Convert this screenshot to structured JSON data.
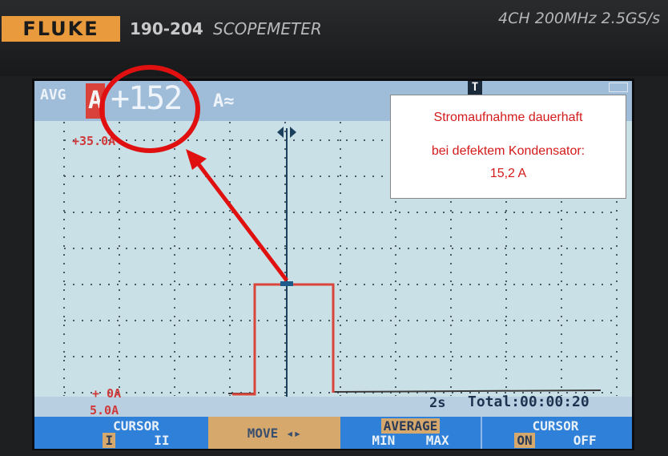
{
  "device": {
    "brand": "FLUKE",
    "model": "190-204",
    "name": "SCOPEMETER",
    "specs": "4CH  200MHz  2.5GS/s"
  },
  "display": {
    "mode": "AVG",
    "channel": "A",
    "reading": "+152",
    "unit": "A≈",
    "trigger_marker": "T",
    "scale_top": "+35.0A",
    "zero_label": "+  0A",
    "scale_per_div": "5.0A",
    "timebase": "2s",
    "total_time": "Total:00:00:20"
  },
  "softkeys": [
    {
      "label": "CURSOR",
      "options": [
        "I",
        "II"
      ],
      "selected": "I"
    },
    {
      "label": "MOVE ◂▸"
    },
    {
      "label": "AVERAGE",
      "options": [
        "MIN",
        "MAX"
      ],
      "selected": "AVERAGE"
    },
    {
      "label": "CURSOR",
      "options": [
        "ON",
        "OFF"
      ],
      "selected": "ON"
    }
  ],
  "annotation": {
    "line1": "Stromaufnahme dauerhaft",
    "line2": "bei defektem Kondensator:",
    "line3": "15,2 A"
  },
  "colors": {
    "trace": "#d9453a",
    "annotation": "#e01010",
    "softkey_bar": "#2f80d8",
    "screen": "#c9e0e6"
  }
}
